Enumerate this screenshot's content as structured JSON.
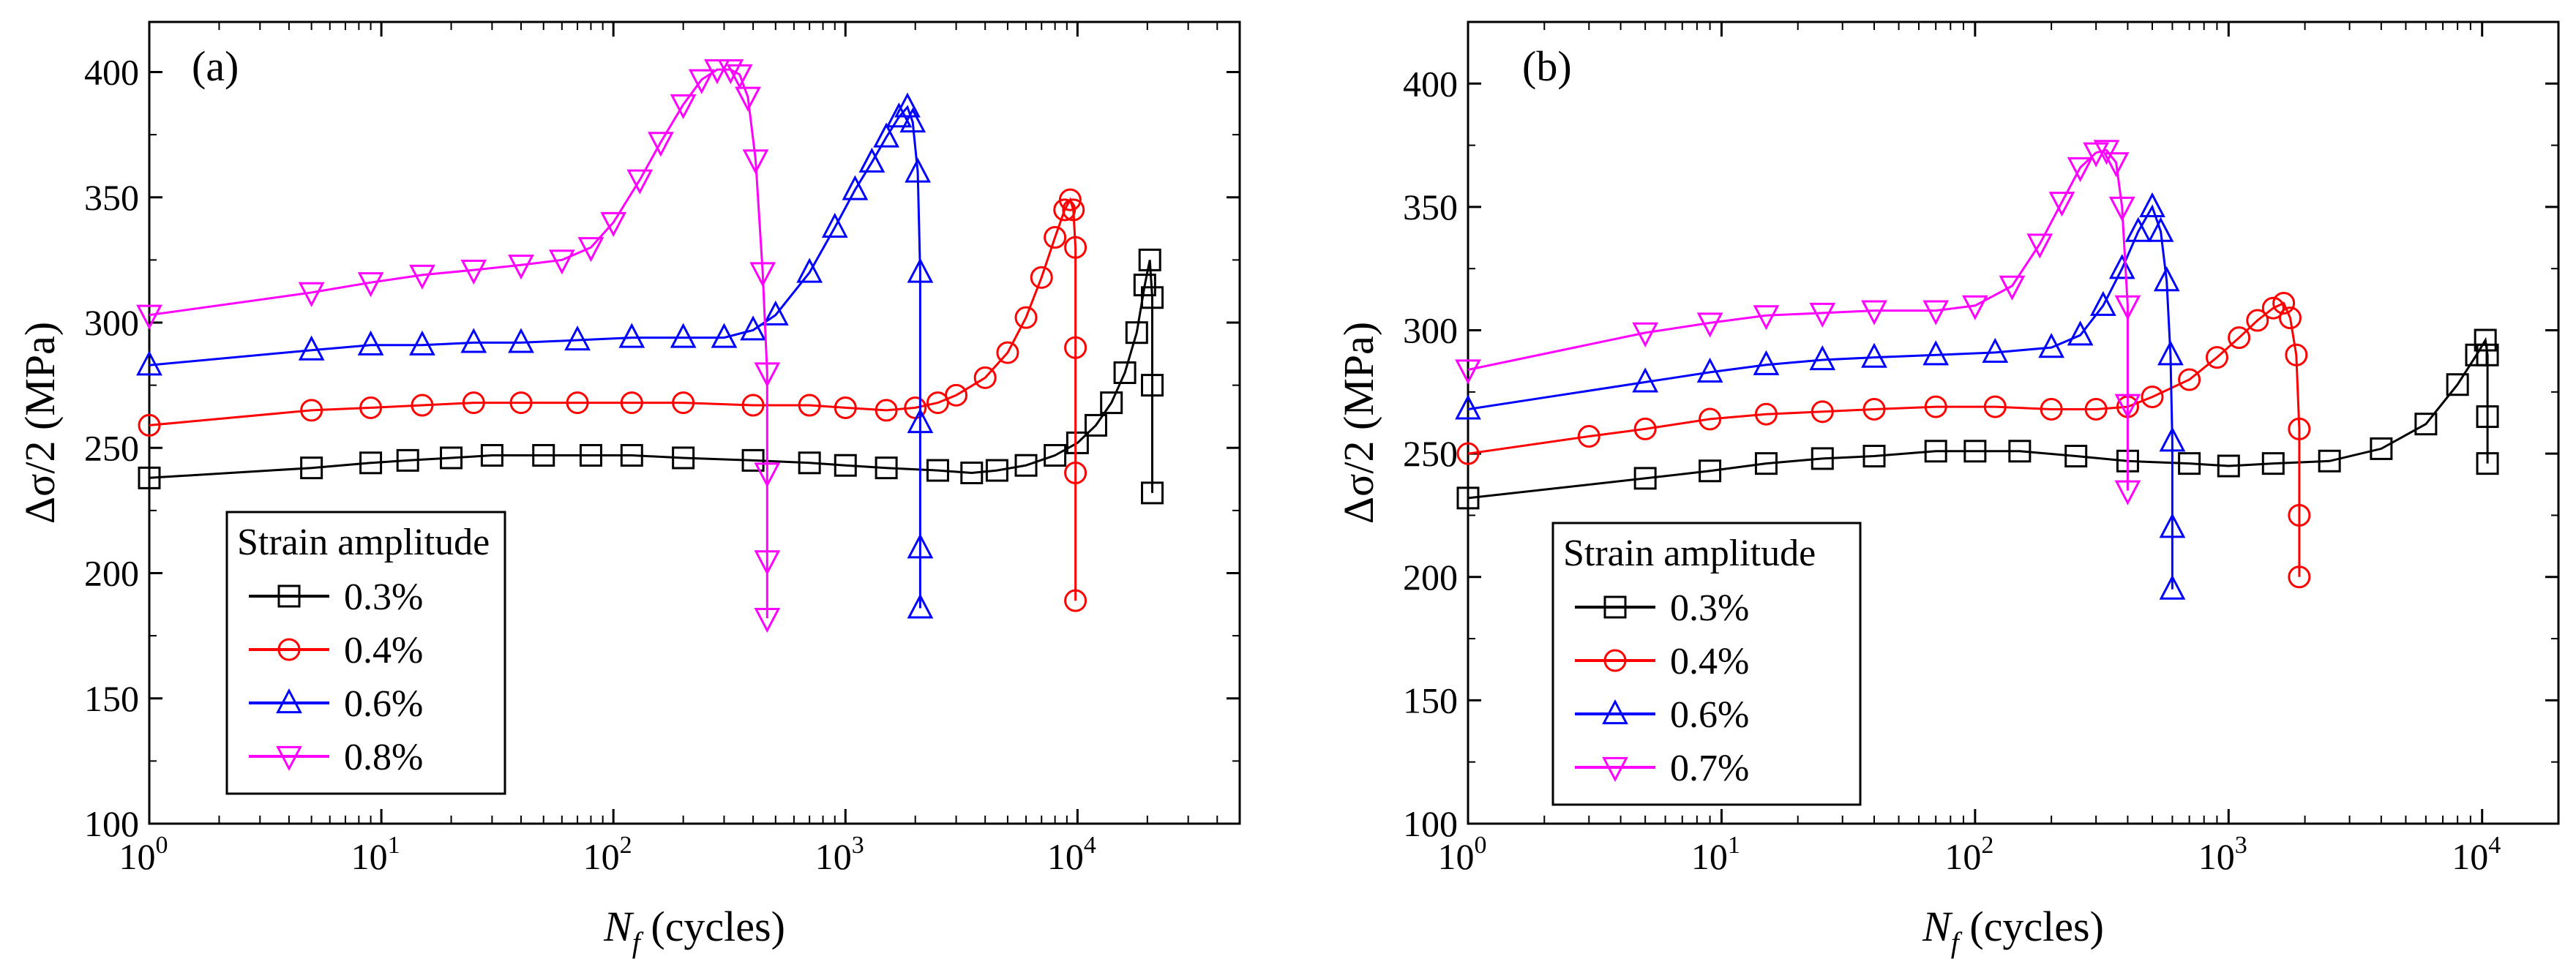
{
  "figure": {
    "description_free": true
  },
  "chart_data": [
    {
      "type": "line",
      "panel_label": "(a)",
      "title": "",
      "xlabel_main": "N",
      "xlabel_sub": "f",
      "xlabel_unit": " (cycles)",
      "ylabel": "Δσ/2 (MPa)",
      "xscale": "log",
      "xlim": [
        1,
        50000
      ],
      "ylim": [
        100,
        420
      ],
      "yticks": [
        "100",
        "150",
        "200",
        "250",
        "300",
        "350",
        "400"
      ],
      "xticks": [
        {
          "base": "10",
          "exp": "0"
        },
        {
          "base": "10",
          "exp": "1"
        },
        {
          "base": "10",
          "exp": "2"
        },
        {
          "base": "10",
          "exp": "3"
        },
        {
          "base": "10",
          "exp": "4"
        }
      ],
      "legend": {
        "title": "Strain amplitude",
        "position": "lower-left"
      },
      "series": [
        {
          "name": "0.3%",
          "color": "#000000",
          "marker": "square",
          "x": [
            1,
            5,
            9,
            13,
            20,
            30,
            50,
            80,
            120,
            200,
            400,
            700,
            1000,
            1500,
            2500,
            3500,
            4500,
            6000,
            8000,
            10000,
            12000,
            14000,
            16000,
            18000,
            19500,
            20500,
            21000,
            21000,
            21000
          ],
          "y": [
            238,
            242,
            244,
            245,
            246,
            247,
            247,
            247,
            247,
            246,
            245,
            244,
            243,
            242,
            241,
            240,
            241,
            243,
            247,
            252,
            259,
            268,
            280,
            296,
            315,
            325,
            310,
            275,
            232
          ]
        },
        {
          "name": "0.4%",
          "color": "#ff0000",
          "marker": "circle",
          "x": [
            1,
            5,
            9,
            15,
            25,
            40,
            70,
            120,
            200,
            400,
            700,
            1000,
            1500,
            2000,
            2500,
            3000,
            4000,
            5000,
            6000,
            7000,
            8000,
            8800,
            9300,
            9600,
            9800,
            9800,
            9800,
            9800
          ],
          "y": [
            259,
            265,
            266,
            267,
            268,
            268,
            268,
            268,
            268,
            267,
            267,
            266,
            265,
            266,
            268,
            271,
            278,
            288,
            302,
            318,
            334,
            345,
            349,
            345,
            330,
            290,
            240,
            189
          ]
        },
        {
          "name": "0.6%",
          "color": "#0000ff",
          "marker": "triangle-up",
          "x": [
            1,
            5,
            9,
            15,
            25,
            40,
            70,
            120,
            200,
            300,
            400,
            500,
            700,
            900,
            1100,
            1300,
            1500,
            1700,
            1850,
            1950,
            2050,
            2100,
            2100,
            2100,
            2100
          ],
          "y": [
            283,
            289,
            291,
            291,
            292,
            292,
            293,
            294,
            294,
            294,
            297,
            303,
            320,
            338,
            353,
            364,
            374,
            382,
            386,
            380,
            360,
            320,
            260,
            210,
            186
          ]
        },
        {
          "name": "0.8%",
          "color": "#ff00ff",
          "marker": "triangle-down",
          "x": [
            1,
            5,
            9,
            15,
            25,
            40,
            60,
            80,
            100,
            130,
            160,
            200,
            240,
            280,
            320,
            350,
            380,
            410,
            440,
            460,
            460,
            460,
            460
          ],
          "y": [
            303,
            312,
            316,
            319,
            321,
            323,
            325,
            330,
            340,
            357,
            372,
            387,
            397,
            401,
            401,
            399,
            390,
            365,
            320,
            280,
            240,
            205,
            182
          ]
        }
      ]
    },
    {
      "type": "line",
      "panel_label": "(b)",
      "title": "",
      "xlabel_main": "N",
      "xlabel_sub": "f",
      "xlabel_unit": " (cycles)",
      "ylabel": "Δσ/2 (MPa)",
      "xscale": "log",
      "xlim": [
        1,
        20000
      ],
      "ylim": [
        100,
        425
      ],
      "yticks": [
        "100",
        "150",
        "200",
        "250",
        "300",
        "350",
        "400"
      ],
      "xticks": [
        {
          "base": "10",
          "exp": "0"
        },
        {
          "base": "10",
          "exp": "1"
        },
        {
          "base": "10",
          "exp": "2"
        },
        {
          "base": "10",
          "exp": "3"
        },
        {
          "base": "10",
          "exp": "4"
        }
      ],
      "legend": {
        "title": "Strain amplitude",
        "position": "lower-left"
      },
      "series": [
        {
          "name": "0.3%",
          "color": "#000000",
          "marker": "square",
          "x": [
            1,
            5,
            9,
            15,
            25,
            40,
            70,
            100,
            150,
            250,
            400,
            700,
            1000,
            1500,
            2500,
            4000,
            6000,
            8000,
            9500,
            10300,
            10500,
            10500,
            10500
          ],
          "y": [
            232,
            240,
            243,
            246,
            248,
            249,
            251,
            251,
            251,
            249,
            247,
            246,
            245,
            246,
            247,
            252,
            262,
            278,
            290,
            296,
            290,
            265,
            246
          ]
        },
        {
          "name": "0.4%",
          "color": "#ff0000",
          "marker": "circle",
          "x": [
            1,
            3,
            5,
            9,
            15,
            25,
            40,
            70,
            120,
            200,
            300,
            400,
            500,
            700,
            900,
            1100,
            1300,
            1500,
            1650,
            1750,
            1850,
            1900,
            1900,
            1900
          ],
          "y": [
            250,
            257,
            260,
            264,
            266,
            267,
            268,
            269,
            269,
            268,
            268,
            269,
            273,
            280,
            289,
            297,
            304,
            309,
            311,
            305,
            290,
            260,
            225,
            200
          ]
        },
        {
          "name": "0.6%",
          "color": "#0000ff",
          "marker": "triangle-up",
          "x": [
            1,
            5,
            9,
            15,
            25,
            40,
            70,
            120,
            200,
            260,
            320,
            380,
            440,
            500,
            540,
            570,
            590,
            600,
            600,
            600
          ],
          "y": [
            268,
            279,
            283,
            286,
            288,
            289,
            290,
            291,
            293,
            298,
            310,
            325,
            340,
            350,
            340,
            320,
            290,
            255,
            220,
            195
          ]
        },
        {
          "name": "0.7%",
          "color": "#ff00ff",
          "marker": "triangle-down",
          "x": [
            1,
            5,
            9,
            15,
            25,
            40,
            70,
            100,
            140,
            180,
            220,
            260,
            300,
            330,
            360,
            380,
            400,
            400,
            400
          ],
          "y": [
            284,
            299,
            303,
            306,
            307,
            308,
            308,
            310,
            318,
            335,
            352,
            366,
            372,
            373,
            368,
            350,
            310,
            270,
            235
          ]
        }
      ]
    }
  ]
}
